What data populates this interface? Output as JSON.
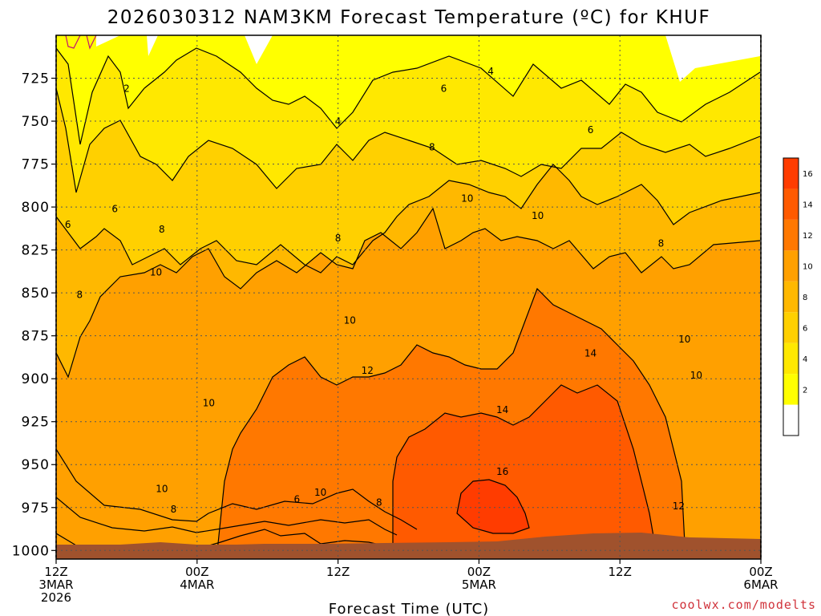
{
  "chart_data": {
    "type": "heatmap",
    "title": "2026030312 NAM3KM Forecast Temperature (ºC) for KHUF",
    "xlabel": "Forecast Time (UTC)",
    "ylabel": "",
    "credit": "coolwx.com/modelts",
    "y_axis": {
      "ticks": [
        "725",
        "750",
        "775",
        "800",
        "825",
        "850",
        "875",
        "900",
        "925",
        "950",
        "975",
        "1000"
      ],
      "range": [
        700,
        1005
      ],
      "inverted": true
    },
    "x_axis": {
      "ticks": [
        {
          "hour": 0,
          "line1": "12Z",
          "line2": "3MAR",
          "line3": "2026"
        },
        {
          "hour": 12,
          "line1": "00Z",
          "line2": "4MAR",
          "line3": ""
        },
        {
          "hour": 24,
          "line1": "12Z",
          "line2": "",
          "line3": ""
        },
        {
          "hour": 36,
          "line1": "00Z",
          "line2": "5MAR",
          "line3": ""
        },
        {
          "hour": 48,
          "line1": "12Z",
          "line2": "",
          "line3": ""
        },
        {
          "hour": 60,
          "line1": "00Z",
          "line2": "6MAR",
          "line3": ""
        }
      ],
      "range": [
        0,
        60
      ]
    },
    "grid": true,
    "colorbar": {
      "placement": "right",
      "levels": [
        {
          "min": 0,
          "max": 2,
          "color": "#ffffff",
          "label": ""
        },
        {
          "min": 2,
          "max": 4,
          "color": "#ffff00",
          "label": "2"
        },
        {
          "min": 4,
          "max": 6,
          "color": "#ffe800",
          "label": "4"
        },
        {
          "min": 6,
          "max": 8,
          "color": "#ffd000",
          "label": "6"
        },
        {
          "min": 8,
          "max": 10,
          "color": "#ffb800",
          "label": "8"
        },
        {
          "min": 10,
          "max": 12,
          "color": "#ffa000",
          "label": "10"
        },
        {
          "min": 12,
          "max": 14,
          "color": "#ff7800",
          "label": "12"
        },
        {
          "min": 14,
          "max": 16,
          "color": "#ff5a00",
          "label": "14"
        },
        {
          "min": 16,
          "max": 18,
          "color": "#ff3c00",
          "label": "16"
        }
      ]
    },
    "contour_labels": [
      {
        "text": "2",
        "hour": 6.0,
        "p": 733
      },
      {
        "text": "4",
        "hour": 24.0,
        "p": 752
      },
      {
        "text": "4",
        "hour": 37.0,
        "p": 723
      },
      {
        "text": "6",
        "hour": 33.0,
        "p": 733
      },
      {
        "text": "6",
        "hour": 45.5,
        "p": 757
      },
      {
        "text": "8",
        "hour": 32.0,
        "p": 767
      },
      {
        "text": "6",
        "hour": 5.0,
        "p": 803
      },
      {
        "text": "6",
        "hour": 1.0,
        "p": 812
      },
      {
        "text": "8",
        "hour": 9.0,
        "p": 815
      },
      {
        "text": "8",
        "hour": 24.0,
        "p": 820
      },
      {
        "text": "8",
        "hour": 51.5,
        "p": 823
      },
      {
        "text": "10",
        "hour": 35.0,
        "p": 797
      },
      {
        "text": "10",
        "hour": 41.0,
        "p": 807
      },
      {
        "text": "10",
        "hour": 8.5,
        "p": 840
      },
      {
        "text": "8",
        "hour": 2.0,
        "p": 853
      },
      {
        "text": "10",
        "hour": 25.0,
        "p": 868
      },
      {
        "text": "12",
        "hour": 26.5,
        "p": 897
      },
      {
        "text": "14",
        "hour": 45.5,
        "p": 887
      },
      {
        "text": "10",
        "hour": 53.5,
        "p": 879
      },
      {
        "text": "10",
        "hour": 54.5,
        "p": 900
      },
      {
        "text": "10",
        "hour": 13.0,
        "p": 916
      },
      {
        "text": "14",
        "hour": 38.0,
        "p": 920
      },
      {
        "text": "16",
        "hour": 38.0,
        "p": 956
      },
      {
        "text": "10",
        "hour": 9.0,
        "p": 966
      },
      {
        "text": "8",
        "hour": 10.0,
        "p": 978
      },
      {
        "text": "10",
        "hour": 22.5,
        "p": 968
      },
      {
        "text": "6",
        "hour": 20.5,
        "p": 972
      },
      {
        "text": "8",
        "hour": 27.5,
        "p": 974
      },
      {
        "text": "12",
        "hour": 53.0,
        "p": 976
      }
    ]
  }
}
